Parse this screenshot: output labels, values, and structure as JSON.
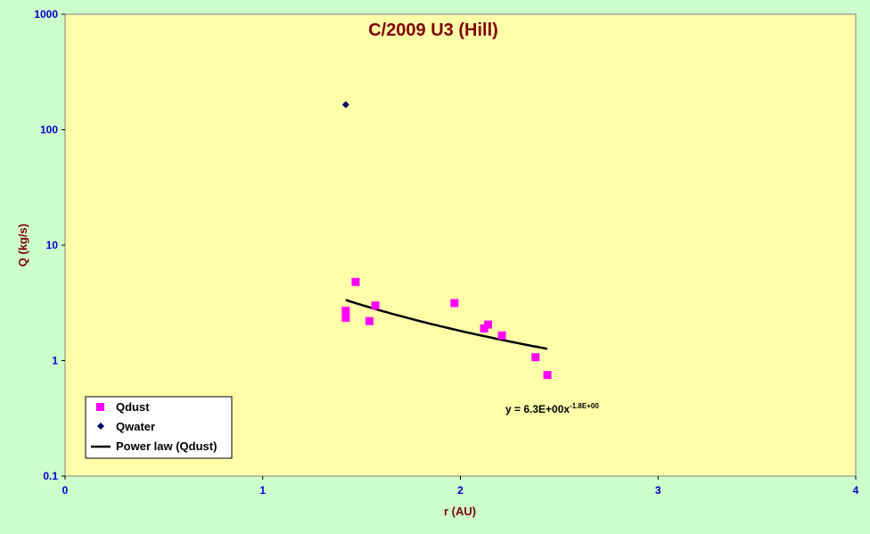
{
  "chart_data": {
    "type": "scatter",
    "title": "C/2009 U3 (Hill)",
    "xlabel": "r (AU)",
    "ylabel": "Q (kg/s)",
    "xlim": [
      0,
      4
    ],
    "ylim": [
      0.1,
      1000
    ],
    "yscale": "log",
    "x_ticks": [
      "0",
      "1",
      "2",
      "3",
      "4"
    ],
    "y_ticks": [
      "0.1",
      "1",
      "10",
      "100",
      "1000"
    ],
    "grid": false,
    "legend_position": "bottom-left",
    "plot_background": "#ffffaa",
    "page_background": "#ccffcc",
    "series": [
      {
        "name": "Qdust",
        "marker": "square",
        "color": "#ff00ff",
        "points": [
          {
            "x": 1.42,
            "y": 2.35
          },
          {
            "x": 1.42,
            "y": 2.7
          },
          {
            "x": 1.47,
            "y": 4.8
          },
          {
            "x": 1.54,
            "y": 2.2
          },
          {
            "x": 1.57,
            "y": 3.0
          },
          {
            "x": 1.97,
            "y": 3.15
          },
          {
            "x": 2.12,
            "y": 1.9
          },
          {
            "x": 2.14,
            "y": 2.05
          },
          {
            "x": 2.21,
            "y": 1.65
          },
          {
            "x": 2.38,
            "y": 1.07
          },
          {
            "x": 2.44,
            "y": 0.75
          }
        ]
      },
      {
        "name": "Qwater",
        "marker": "diamond",
        "color": "#000066",
        "points": [
          {
            "x": 1.42,
            "y": 165
          }
        ]
      },
      {
        "name": "Power law (Qdust)",
        "type": "line",
        "color": "#000000",
        "fit": {
          "a": 6.3,
          "b": -1.8
        },
        "x_range": [
          1.42,
          2.44
        ]
      }
    ],
    "annotation": {
      "base": "y = 6.3E+00x",
      "superscript": "-1.8E+00"
    }
  }
}
